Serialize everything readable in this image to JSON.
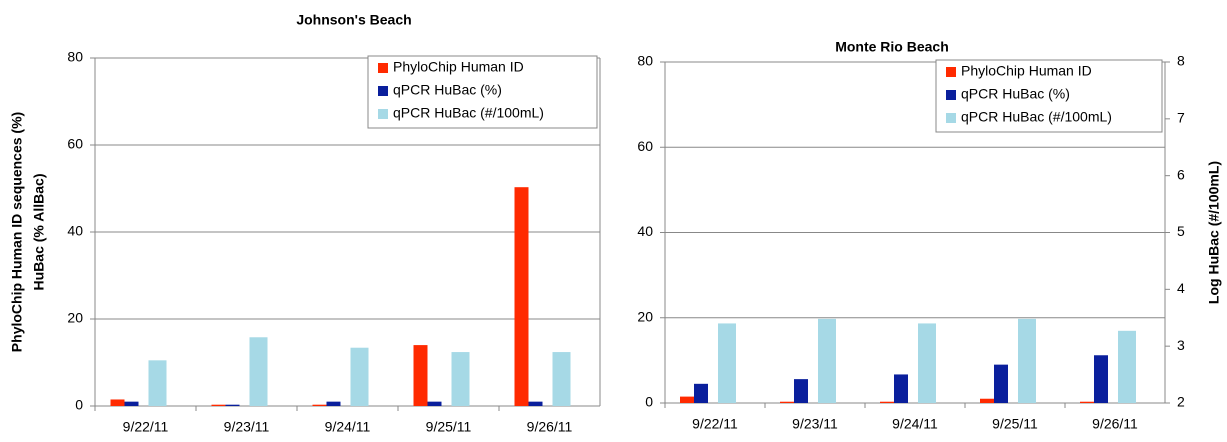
{
  "chart_data": [
    {
      "type": "bar",
      "title": "Johnson's Beach",
      "ylabel": [
        "PhyloChip Human ID sequences (%)",
        "HuBac (% AllBac)"
      ],
      "categories": [
        "9/22/11",
        "9/23/11",
        "9/24/11",
        "9/25/11",
        "9/26/11"
      ],
      "series": [
        {
          "name": "PhyloChip Human ID",
          "color": "#ff2a00",
          "values": [
            1.5,
            0.3,
            0.3,
            14,
            50.3
          ]
        },
        {
          "name": "qPCR HuBac (%)",
          "color": "#0a1f9c",
          "values": [
            1,
            0.3,
            1,
            1,
            1
          ]
        },
        {
          "name": "qPCR HuBac (#/100mL)",
          "color": "#a6d9e6",
          "values": [
            10.5,
            15.8,
            13.4,
            12.4,
            12.4
          ]
        }
      ],
      "ylim": [
        0,
        80
      ],
      "yticks": [
        0,
        20,
        40,
        60,
        80
      ],
      "grid": true
    },
    {
      "type": "bar",
      "title": "Monte Rio Beach",
      "y2label": "Log HuBac (#/100mL)",
      "categories": [
        "9/22/11",
        "9/23/11",
        "9/24/11",
        "9/25/11",
        "9/26/11"
      ],
      "series": [
        {
          "name": "PhyloChip Human ID",
          "color": "#ff2a00",
          "values": [
            1.5,
            0.3,
            0.3,
            1,
            0.3
          ]
        },
        {
          "name": "qPCR HuBac (%)",
          "color": "#0a1f9c",
          "values": [
            4.5,
            5.6,
            6.7,
            9,
            11.2
          ]
        },
        {
          "name": "qPCR HuBac (#/100mL)",
          "color": "#a6d9e6",
          "axis": "y2",
          "values": [
            3.4,
            3.48,
            3.4,
            3.48,
            3.27
          ]
        }
      ],
      "ylim": [
        0,
        80
      ],
      "yticks": [
        0,
        20,
        40,
        60,
        80
      ],
      "y2lim": [
        2,
        8
      ],
      "y2ticks": [
        2,
        3,
        4,
        5,
        6,
        7,
        8
      ],
      "grid": true
    }
  ]
}
